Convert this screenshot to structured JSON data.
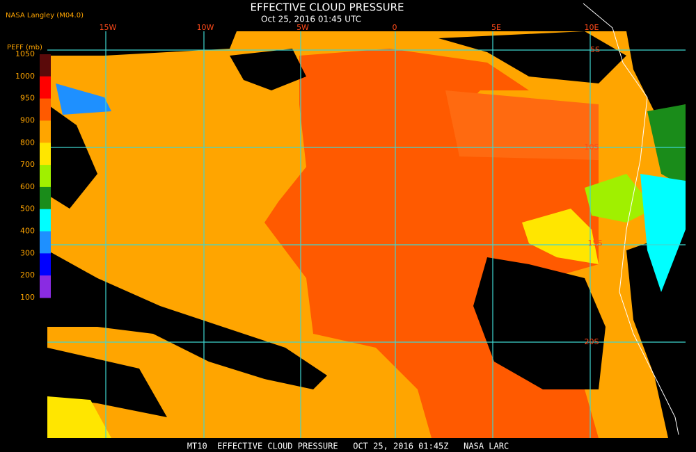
{
  "header": {
    "source": "NASA Langley (M04.0)",
    "title": "EFFECTIVE CLOUD PRESSURE",
    "subtitle": "Oct 25, 2016 01:45 UTC"
  },
  "legend": {
    "title": "PEFF (mb)",
    "ticks": [
      1050,
      1000,
      950,
      900,
      800,
      700,
      600,
      500,
      400,
      300,
      200,
      100
    ],
    "colors": [
      "#5a0a0a",
      "#ff0000",
      "#ff5a00",
      "#ffa500",
      "#ffe600",
      "#a0f000",
      "#1a8c1a",
      "#00ffff",
      "#1e90ff",
      "#0000ff",
      "#8a2be2"
    ]
  },
  "grid": {
    "lon_labels": [
      "15W",
      "10W",
      "5W",
      "0",
      "5E",
      "10E"
    ],
    "lat_labels": [
      "5S",
      "10S",
      "15S",
      "20S"
    ]
  },
  "footer": "MT10  EFFECTIVE CLOUD PRESSURE   OCT 25, 2016 01:45Z   NASA LARC"
}
